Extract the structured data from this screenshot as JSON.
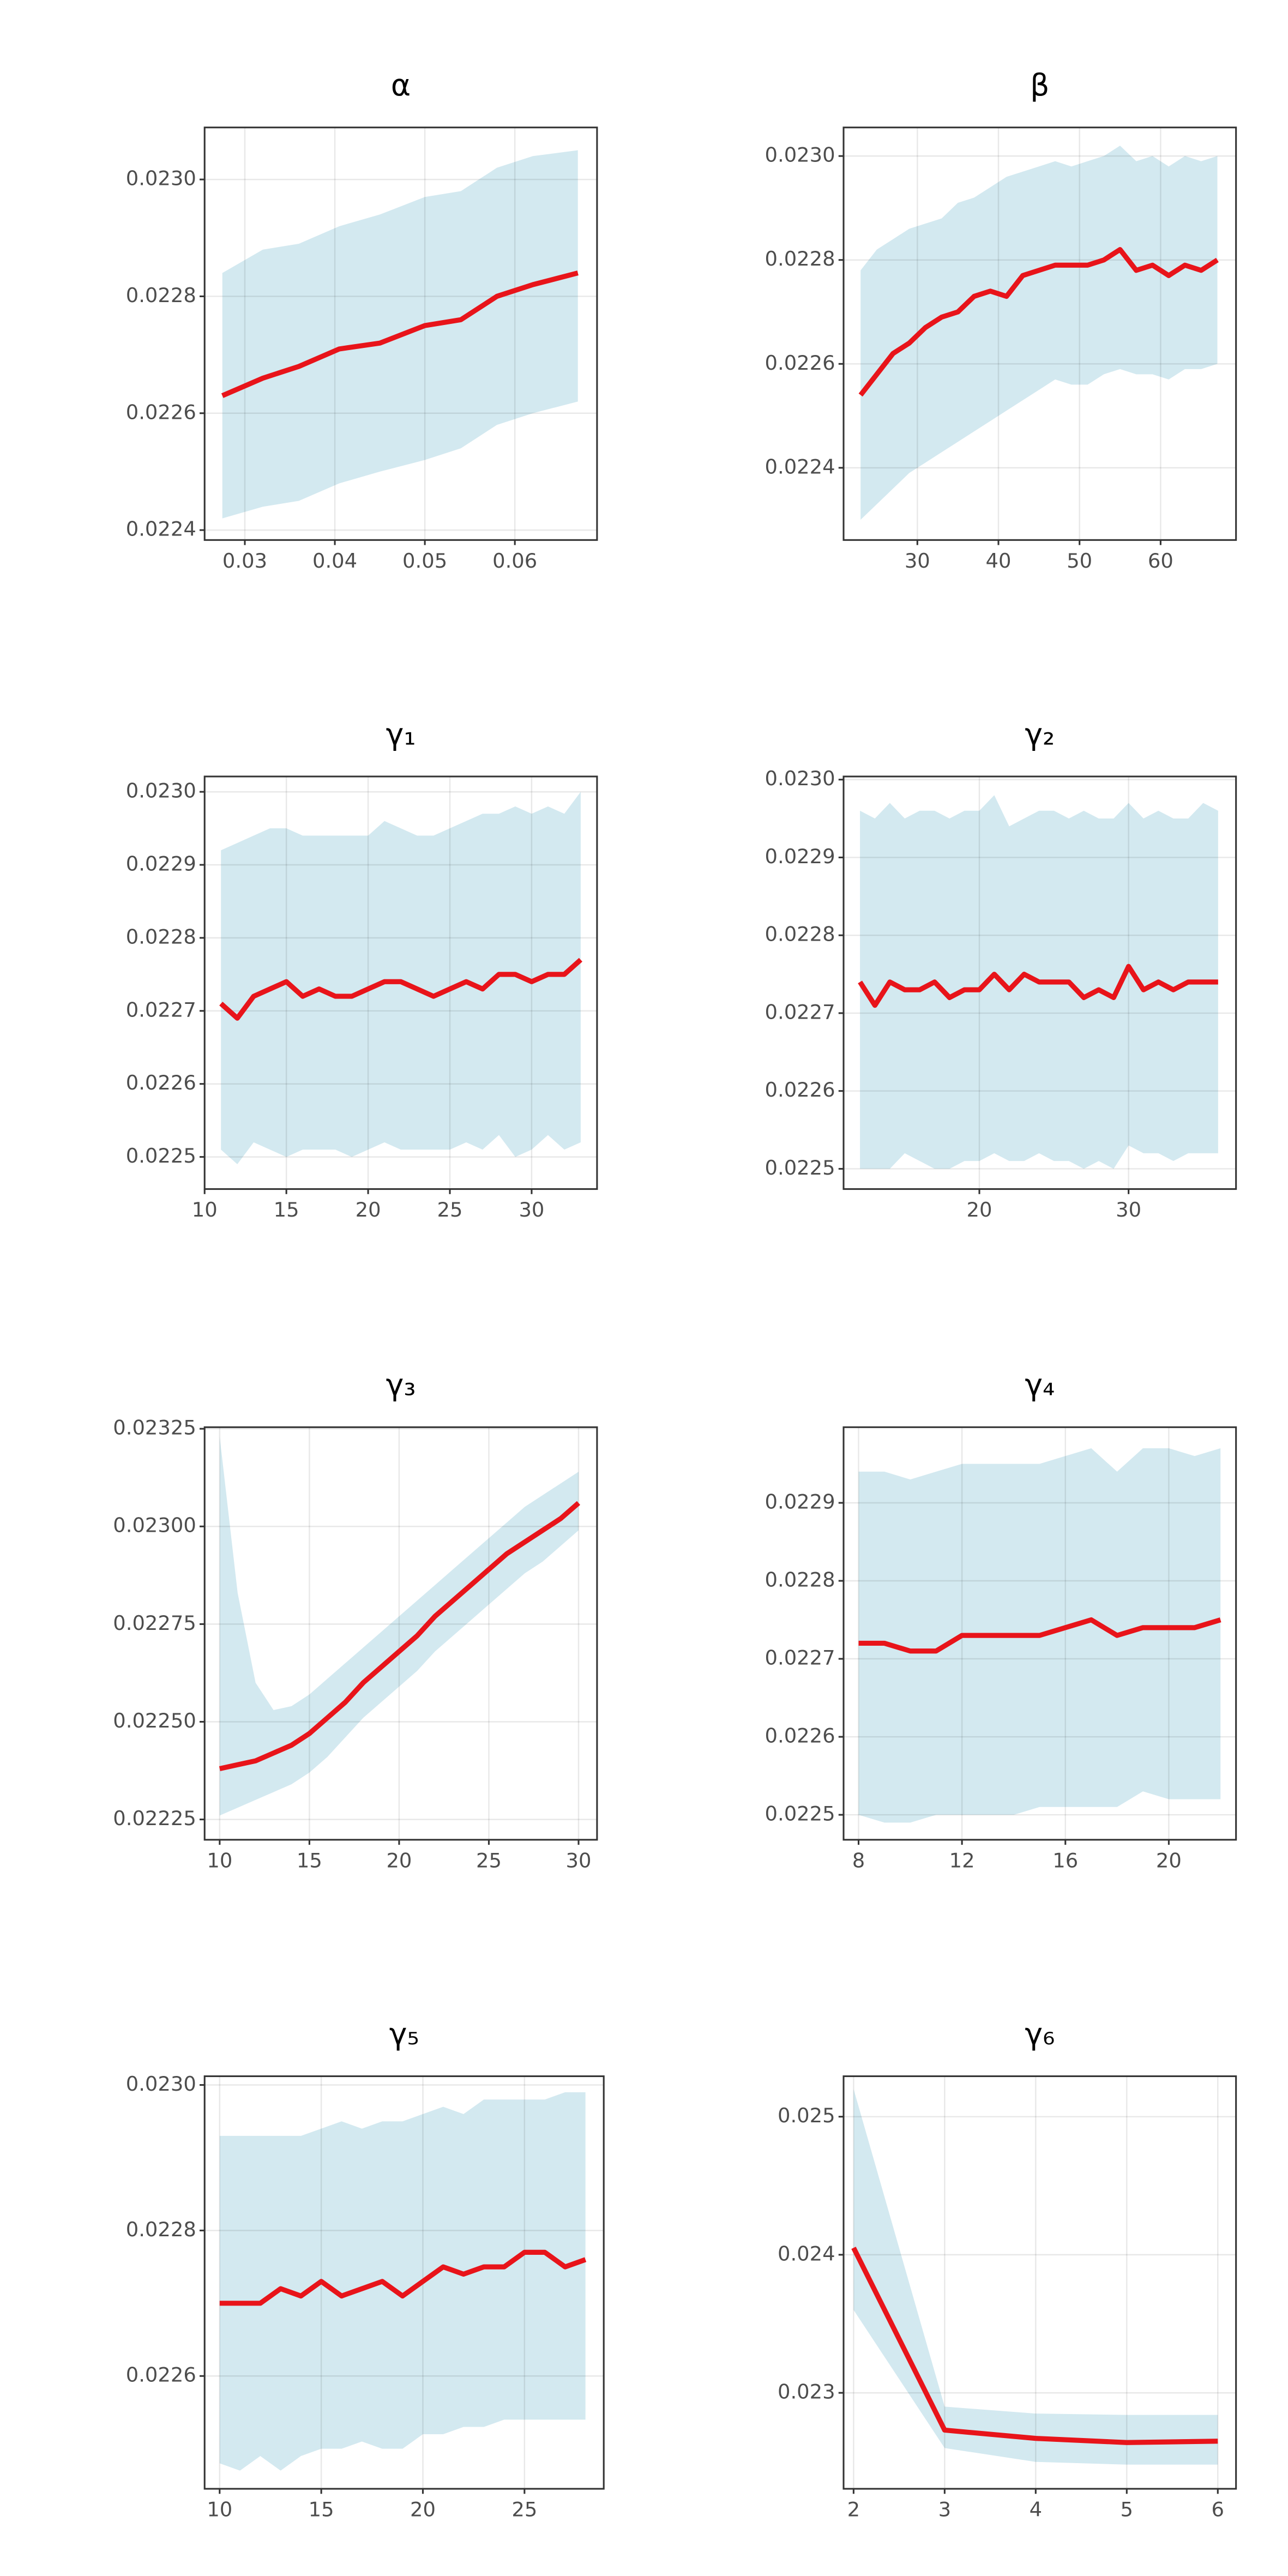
{
  "chart_data": [
    {
      "type": "line",
      "title": "α",
      "grid": true,
      "x": [
        0.0275,
        0.032,
        0.036,
        0.0405,
        0.045,
        0.05,
        0.054,
        0.058,
        0.062,
        0.067
      ],
      "line": {
        "color": "#e8141a",
        "values": [
          0.02263,
          0.02266,
          0.02268,
          0.02271,
          0.02272,
          0.02275,
          0.02276,
          0.0228,
          0.02282,
          0.02284
        ]
      },
      "band": {
        "color": "#d3e9f0",
        "upper": [
          0.02284,
          0.02288,
          0.02289,
          0.02292,
          0.02294,
          0.02297,
          0.02298,
          0.02302,
          0.02304,
          0.02305
        ],
        "lower": [
          0.02242,
          0.02244,
          0.02245,
          0.02248,
          0.0225,
          0.02252,
          0.02254,
          0.02258,
          0.0226,
          0.02262
        ]
      },
      "xlim": [
        0.02553,
        0.06913
      ],
      "xticks": [
        0.03,
        0.04,
        0.05,
        0.06
      ],
      "ylim": [
        0.022383,
        0.023089
      ],
      "yticks": [
        0.0224,
        0.0226,
        0.0228,
        {
          "value": 0.023,
          "label": "0.0230"
        }
      ]
    },
    {
      "type": "line",
      "title": "β",
      "grid": true,
      "x": [
        23,
        25,
        27,
        29,
        31,
        33,
        35,
        37,
        39,
        41,
        43,
        45,
        47,
        49,
        51,
        53,
        55,
        57,
        59,
        61,
        63,
        65,
        67
      ],
      "line": {
        "color": "#e8141a",
        "values": [
          0.02254,
          0.02258,
          0.02262,
          0.02264,
          0.02267,
          0.02269,
          0.0227,
          0.02273,
          0.02274,
          0.02273,
          0.02277,
          0.02278,
          0.02279,
          0.02279,
          0.02279,
          0.0228,
          0.02282,
          0.02278,
          0.02279,
          0.02277,
          0.02279,
          0.02278,
          0.0228
        ]
      },
      "band": {
        "color": "#d3e9f0",
        "upper": [
          0.02278,
          0.02282,
          0.02284,
          0.02286,
          0.02287,
          0.02288,
          0.02291,
          0.02292,
          0.02294,
          0.02296,
          0.02297,
          0.02298,
          0.02299,
          0.02298,
          0.02299,
          0.023,
          0.02302,
          0.02299,
          0.023,
          0.02298,
          0.023,
          0.02299,
          0.023
        ],
        "lower": [
          0.0223,
          0.02233,
          0.02236,
          0.02239,
          0.02241,
          0.02243,
          0.02245,
          0.02247,
          0.02249,
          0.02251,
          0.02253,
          0.02255,
          0.02257,
          0.02256,
          0.02256,
          0.02258,
          0.02259,
          0.02258,
          0.02258,
          0.02257,
          0.02259,
          0.02259,
          0.0226
        ]
      },
      "xlim": [
        20.9,
        69.3
      ],
      "xticks": [
        30,
        40,
        50,
        60
      ],
      "ylim": [
        0.022261,
        0.023055
      ],
      "yticks": [
        0.0224,
        0.0226,
        0.0228,
        {
          "value": 0.023,
          "label": "0.0230"
        }
      ]
    },
    {
      "type": "line",
      "title": "γ₁",
      "grid": true,
      "x": [
        11,
        12,
        13,
        14,
        15,
        16,
        17,
        18,
        19,
        20,
        21,
        22,
        23,
        24,
        25,
        26,
        27,
        28,
        29,
        30,
        31,
        32,
        33
      ],
      "line": {
        "color": "#e8141a",
        "values": [
          0.02271,
          0.02269,
          0.02272,
          0.02273,
          0.02274,
          0.02272,
          0.02273,
          0.02272,
          0.02272,
          0.02273,
          0.02274,
          0.02274,
          0.02273,
          0.02272,
          0.02273,
          0.02274,
          0.02273,
          0.02275,
          0.02275,
          0.02274,
          0.02275,
          0.02275,
          0.02277
        ]
      },
      "band": {
        "color": "#d3e9f0",
        "upper": [
          0.02292,
          0.02293,
          0.02294,
          0.02295,
          0.02295,
          0.02294,
          0.02294,
          0.02294,
          0.02294,
          0.02294,
          0.02296,
          0.02295,
          0.02294,
          0.02294,
          0.02295,
          0.02296,
          0.02297,
          0.02297,
          0.02298,
          0.02297,
          0.02298,
          0.02297,
          0.023
        ],
        "lower": [
          0.02251,
          0.02249,
          0.02252,
          0.02251,
          0.0225,
          0.02251,
          0.02251,
          0.02251,
          0.0225,
          0.02251,
          0.02252,
          0.02251,
          0.02251,
          0.02251,
          0.02251,
          0.02252,
          0.02251,
          0.02253,
          0.0225,
          0.02251,
          0.02253,
          0.02251,
          0.02252
        ]
      },
      "xlim": [
        10,
        34
      ],
      "xticks": [
        10,
        15,
        20,
        25,
        30
      ],
      "ylim": [
        0.022456,
        0.023021
      ],
      "yticks": [
        0.0225,
        0.0226,
        0.0227,
        0.0228,
        0.0229,
        {
          "value": 0.023,
          "label": "0.0230"
        }
      ]
    },
    {
      "type": "line",
      "title": "γ₂",
      "grid": true,
      "x": [
        12,
        13,
        14,
        15,
        16,
        17,
        18,
        19,
        20,
        21,
        22,
        23,
        24,
        25,
        26,
        27,
        28,
        29,
        30,
        31,
        32,
        33,
        34,
        35,
        36
      ],
      "line": {
        "color": "#e8141a",
        "values": [
          0.02274,
          0.02271,
          0.02274,
          0.02273,
          0.02273,
          0.02274,
          0.02272,
          0.02273,
          0.02273,
          0.02275,
          0.02273,
          0.02275,
          0.02274,
          0.02274,
          0.02274,
          0.02272,
          0.02273,
          0.02272,
          0.02276,
          0.02273,
          0.02274,
          0.02273,
          0.02274,
          0.02274,
          0.02274
        ]
      },
      "band": {
        "color": "#d3e9f0",
        "upper": [
          0.02296,
          0.02295,
          0.02297,
          0.02295,
          0.02296,
          0.02296,
          0.02295,
          0.02296,
          0.02296,
          0.02298,
          0.02294,
          0.02295,
          0.02296,
          0.02296,
          0.02295,
          0.02296,
          0.02295,
          0.02295,
          0.02297,
          0.02295,
          0.02296,
          0.02295,
          0.02295,
          0.02297,
          0.02296
        ],
        "lower": [
          0.0225,
          0.0225,
          0.0225,
          0.02252,
          0.02251,
          0.0225,
          0.0225,
          0.02251,
          0.02251,
          0.02252,
          0.02251,
          0.02251,
          0.02252,
          0.02251,
          0.02251,
          0.0225,
          0.02251,
          0.0225,
          0.02253,
          0.02252,
          0.02252,
          0.02251,
          0.02252,
          0.02252,
          0.02252
        ]
      },
      "xlim": [
        10.9,
        37.2
      ],
      "xticks": [
        20,
        30
      ],
      "ylim": [
        0.022474,
        0.023004
      ],
      "yticks": [
        0.0225,
        0.0226,
        0.0227,
        0.0228,
        0.0229,
        {
          "value": 0.023,
          "label": "0.0230"
        }
      ]
    },
    {
      "type": "line",
      "title": "γ₃",
      "grid": true,
      "x": [
        10,
        11,
        12,
        13,
        14,
        15,
        16,
        17,
        18,
        19,
        20,
        21,
        22,
        23,
        24,
        25,
        26,
        27,
        28,
        29,
        30
      ],
      "line": {
        "color": "#e8141a",
        "values": [
          0.02238,
          0.02239,
          0.0224,
          0.02242,
          0.02244,
          0.02247,
          0.02251,
          0.02255,
          0.0226,
          0.02264,
          0.02268,
          0.02272,
          0.02277,
          0.02281,
          0.02285,
          0.02289,
          0.02293,
          0.02296,
          0.02299,
          0.02302,
          0.02306
        ]
      },
      "band": {
        "color": "#d3e9f0",
        "upper": [
          0.02323,
          0.02283,
          0.0226,
          0.02253,
          0.02254,
          0.02257,
          0.02261,
          0.02265,
          0.02269,
          0.02273,
          0.02277,
          0.02281,
          0.02285,
          0.02289,
          0.02293,
          0.02297,
          0.02301,
          0.02305,
          0.02308,
          0.02311,
          0.02314
        ],
        "lower": [
          0.02226,
          0.02228,
          0.0223,
          0.02232,
          0.02234,
          0.02237,
          0.02241,
          0.02246,
          0.02251,
          0.02255,
          0.02259,
          0.02263,
          0.02268,
          0.02272,
          0.02276,
          0.0228,
          0.02284,
          0.02288,
          0.02291,
          0.02295,
          0.02299
        ]
      },
      "xlim": [
        9.16,
        31.03
      ],
      "xticks": [
        10,
        15,
        20,
        25,
        30
      ],
      "ylim": [
        0.022198,
        0.023254
      ],
      "yticks": [
        0.02225,
        {
          "value": 0.0225,
          "label": "0.02250"
        },
        0.02275,
        {
          "value": 0.023,
          "label": "0.02300"
        },
        0.02325
      ]
    },
    {
      "type": "line",
      "title": "γ₄",
      "grid": true,
      "x": [
        8,
        9,
        10,
        11,
        12,
        13,
        14,
        15,
        16,
        17,
        18,
        19,
        20,
        21,
        22
      ],
      "line": {
        "color": "#e8141a",
        "values": [
          0.02272,
          0.02272,
          0.02271,
          0.02271,
          0.02273,
          0.02273,
          0.02273,
          0.02273,
          0.02274,
          0.02275,
          0.02273,
          0.02274,
          0.02274,
          0.02274,
          0.02275
        ]
      },
      "band": {
        "color": "#d3e9f0",
        "upper": [
          0.02294,
          0.02294,
          0.02293,
          0.02294,
          0.02295,
          0.02295,
          0.02295,
          0.02295,
          0.02296,
          0.02297,
          0.02294,
          0.02297,
          0.02297,
          0.02296,
          0.02297
        ],
        "lower": [
          0.0225,
          0.02249,
          0.02249,
          0.0225,
          0.0225,
          0.0225,
          0.0225,
          0.02251,
          0.02251,
          0.02251,
          0.02251,
          0.02253,
          0.02252,
          0.02252,
          0.02252
        ]
      },
      "xlim": [
        7.42,
        22.6
      ],
      "xticks": [
        8,
        12,
        16,
        20
      ],
      "ylim": [
        0.022468,
        0.022997
      ],
      "yticks": [
        0.0225,
        0.0226,
        0.0227,
        0.0228,
        0.0229
      ]
    },
    {
      "type": "line",
      "title": "γ₅",
      "grid": true,
      "x": [
        10,
        11,
        12,
        13,
        14,
        15,
        16,
        17,
        18,
        19,
        20,
        21,
        22,
        23,
        24,
        25,
        26,
        27,
        28
      ],
      "line": {
        "color": "#e8141a",
        "values": [
          0.0227,
          0.0227,
          0.0227,
          0.02272,
          0.02271,
          0.02273,
          0.02271,
          0.02272,
          0.02273,
          0.02271,
          0.02273,
          0.02275,
          0.02274,
          0.02275,
          0.02275,
          0.02277,
          0.02277,
          0.02275,
          0.02276
        ]
      },
      "band": {
        "color": "#d3e9f0",
        "upper": [
          0.02293,
          0.02293,
          0.02293,
          0.02293,
          0.02293,
          0.02294,
          0.02295,
          0.02294,
          0.02295,
          0.02295,
          0.02296,
          0.02297,
          0.02296,
          0.02298,
          0.02298,
          0.02298,
          0.02298,
          0.02299,
          0.02299
        ],
        "lower": [
          0.02248,
          0.02247,
          0.02249,
          0.02247,
          0.02249,
          0.0225,
          0.0225,
          0.02251,
          0.0225,
          0.0225,
          0.02252,
          0.02252,
          0.02253,
          0.02253,
          0.02254,
          0.02254,
          0.02254,
          0.02254,
          0.02254
        ]
      },
      "xlim": [
        9.26,
        28.9
      ],
      "xticks": [
        10,
        15,
        20,
        25
      ],
      "ylim": [
        0.022445,
        0.023012
      ],
      "yticks": [
        0.0226,
        0.0228,
        {
          "value": 0.023,
          "label": "0.0230"
        }
      ]
    },
    {
      "type": "line",
      "title": "γ₆",
      "grid": true,
      "x": [
        2,
        3,
        4,
        5,
        6
      ],
      "line": {
        "color": "#e8141a",
        "values": [
          0.02405,
          0.02273,
          0.02267,
          0.02264,
          0.02265
        ]
      },
      "band": {
        "color": "#d3e9f0",
        "upper": [
          0.0252,
          0.0229,
          0.02285,
          0.02284,
          0.02284
        ],
        "lower": [
          0.0236,
          0.0226,
          0.0225,
          0.02248,
          0.02248
        ]
      },
      "xlim": [
        1.89,
        6.2
      ],
      "xticks": [
        2,
        3,
        4,
        5,
        6
      ],
      "ylim": [
        0.022305,
        0.025293
      ],
      "yticks": [
        0.023,
        0.024,
        0.025
      ]
    }
  ]
}
